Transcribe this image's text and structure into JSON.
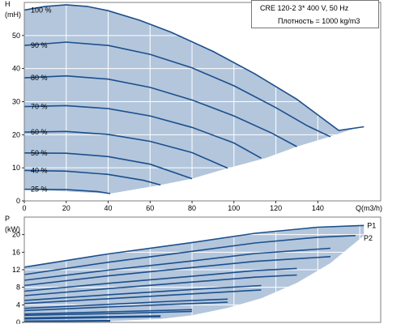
{
  "info": {
    "line1": "CRE 120-2   3* 400 V, 50 Hz",
    "line2": "Плотность = 1000 kg/m3"
  },
  "colors": {
    "area_fill": "#b3c6dc",
    "curve": "#1c4f8c",
    "grid": "#ffffff",
    "frame": "#7f7f7f"
  },
  "chart_data": [
    {
      "type": "line",
      "ylabel": "H",
      "yunit": "(mH)",
      "xlabel": "Q(m3/h)",
      "xlim": [
        0,
        170
      ],
      "ylim": [
        0,
        60
      ],
      "xticks": [
        "0",
        "20",
        "40",
        "60",
        "80",
        "100",
        "120",
        "140"
      ],
      "yticks": [
        "0",
        "10",
        "20",
        "30",
        "40",
        "50"
      ],
      "grid": true,
      "operating_area": {
        "upper": {
          "x": [
            0,
            10,
            20,
            30,
            40,
            55,
            70,
            90,
            110,
            130,
            150,
            162
          ],
          "y": [
            57.7,
            58.8,
            59.3,
            58.8,
            57.5,
            54.6,
            51.0,
            45.2,
            38.4,
            30.7,
            21.3,
            22.4
          ]
        },
        "lower": {
          "x": [
            0,
            41,
            65,
            80,
            97,
            115,
            130,
            145,
            158,
            162
          ],
          "y": [
            3.5,
            2.2,
            4.8,
            6.7,
            9.9,
            12.9,
            16.4,
            19.3,
            22.0,
            22.4
          ]
        }
      },
      "series": [
        {
          "label": "100 %",
          "x": [
            0,
            10,
            20,
            30,
            40,
            55,
            70,
            90,
            110,
            130,
            150,
            162
          ],
          "y": [
            57.7,
            58.8,
            59.3,
            58.8,
            57.5,
            54.6,
            51.0,
            45.2,
            38.4,
            30.7,
            21.3,
            22.4
          ]
        },
        {
          "label": "90 %",
          "x": [
            0,
            20,
            40,
            60,
            80,
            100,
            120,
            135,
            146
          ],
          "y": [
            47.0,
            48.0,
            47.0,
            44.3,
            40.2,
            34.8,
            28.2,
            22.7,
            19.4
          ]
        },
        {
          "label": "80 %",
          "x": [
            0,
            20,
            40,
            60,
            80,
            100,
            118,
            130
          ],
          "y": [
            37.2,
            37.8,
            36.8,
            34.3,
            30.5,
            25.7,
            20.5,
            16.4
          ]
        },
        {
          "label": "70 %",
          "x": [
            0,
            20,
            40,
            60,
            80,
            100,
            113
          ],
          "y": [
            28.5,
            28.8,
            27.9,
            25.7,
            22.2,
            17.5,
            12.9
          ]
        },
        {
          "label": "60 %",
          "x": [
            0,
            20,
            40,
            60,
            80,
            97
          ],
          "y": [
            20.8,
            21.0,
            20.1,
            18.0,
            14.6,
            9.9
          ]
        },
        {
          "label": "50 %",
          "x": [
            0,
            20,
            40,
            60,
            80
          ],
          "y": [
            14.5,
            14.4,
            13.4,
            11.1,
            6.7
          ]
        },
        {
          "label": "40 %",
          "x": [
            0,
            20,
            40,
            57,
            65
          ],
          "y": [
            9.2,
            9.0,
            8.0,
            6.2,
            4.8
          ]
        },
        {
          "label": "25 %",
          "x": [
            0,
            20,
            35,
            41
          ],
          "y": [
            3.5,
            3.4,
            2.8,
            2.2
          ]
        }
      ]
    },
    {
      "type": "line",
      "ylabel": "P",
      "yunit": "(kW)",
      "xlim": [
        0,
        170
      ],
      "ylim": [
        0,
        24
      ],
      "yticks": [
        "0",
        "4",
        "8",
        "12",
        "16",
        "20"
      ],
      "grid": true,
      "area_labels": [
        "P1",
        "P2"
      ],
      "operating_area": {
        "upper": {
          "x": [
            0,
            40,
            80,
            110,
            140,
            162
          ],
          "y": [
            12.6,
            15.6,
            18.2,
            20.3,
            21.7,
            22.1
          ]
        },
        "lower": {
          "x": [
            0,
            41,
            65,
            80,
            97,
            113,
            130,
            146,
            162
          ],
          "y": [
            0.1,
            0.3,
            0.8,
            1.6,
            3.3,
            5.5,
            9.0,
            13.5,
            19.8
          ]
        }
      },
      "series": [
        {
          "name": "P1 100 %",
          "x": [
            0,
            40,
            80,
            110,
            140,
            162
          ],
          "y": [
            12.6,
            15.6,
            18.2,
            20.3,
            21.7,
            22.1
          ]
        },
        {
          "name": "P2 100 %",
          "x": [
            0,
            40,
            80,
            110,
            140,
            158
          ],
          "y": [
            10.9,
            13.7,
            16.2,
            18.1,
            19.4,
            19.8
          ]
        },
        {
          "name": "P1 90 %",
          "x": [
            0,
            40,
            80,
            110,
            146
          ],
          "y": [
            9.6,
            11.9,
            14.0,
            15.7,
            16.9
          ]
        },
        {
          "name": "P2 90 %",
          "x": [
            0,
            40,
            80,
            110,
            146
          ],
          "y": [
            8.4,
            10.6,
            12.5,
            13.9,
            15.0
          ]
        },
        {
          "name": "P1 80 %",
          "x": [
            0,
            40,
            80,
            110,
            130
          ],
          "y": [
            7.1,
            8.9,
            10.5,
            11.8,
            12.3
          ]
        },
        {
          "name": "P2 80 %",
          "x": [
            0,
            40,
            80,
            110,
            130
          ],
          "y": [
            6.1,
            7.7,
            9.2,
            10.3,
            10.8
          ]
        },
        {
          "name": "P1 70 %",
          "x": [
            0,
            40,
            80,
            113
          ],
          "y": [
            5.0,
            6.3,
            7.5,
            8.4
          ]
        },
        {
          "name": "P2 70 %",
          "x": [
            0,
            40,
            80,
            113
          ],
          "y": [
            4.3,
            5.4,
            6.5,
            7.4
          ]
        },
        {
          "name": "P1 60 %",
          "x": [
            0,
            40,
            70,
            97
          ],
          "y": [
            3.2,
            4.1,
            4.8,
            5.3
          ]
        },
        {
          "name": "P2 60 %",
          "x": [
            0,
            40,
            70,
            97
          ],
          "y": [
            2.7,
            3.5,
            4.1,
            4.6
          ]
        },
        {
          "name": "P1 50 %",
          "x": [
            0,
            40,
            80
          ],
          "y": [
            1.9,
            2.4,
            2.9
          ]
        },
        {
          "name": "P2 50 %",
          "x": [
            0,
            40,
            80
          ],
          "y": [
            1.6,
            2.0,
            2.5
          ]
        },
        {
          "name": "P1 40 %",
          "x": [
            0,
            40,
            65
          ],
          "y": [
            1.0,
            1.3,
            1.5
          ]
        },
        {
          "name": "P2 40 %",
          "x": [
            0,
            40,
            65
          ],
          "y": [
            0.8,
            1.1,
            1.3
          ]
        },
        {
          "name": "P1 25 %",
          "x": [
            0,
            41
          ],
          "y": [
            0.3,
            0.4
          ]
        },
        {
          "name": "P2 25 %",
          "x": [
            0,
            41
          ],
          "y": [
            0.2,
            0.3
          ]
        }
      ]
    }
  ]
}
